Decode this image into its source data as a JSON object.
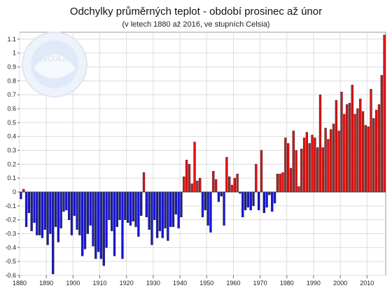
{
  "chart_data": {
    "type": "bar",
    "title": "Odchylky průměrných teplot - období prosinec až únor",
    "subtitle": "(v letech 1880 až 2016, ve stupních Celsia)",
    "xlabel": "",
    "ylabel": "",
    "xlim": [
      1880,
      2017
    ],
    "ylim": [
      -0.6,
      1.15
    ],
    "x_ticks": [
      "1880",
      "1890",
      "1900",
      "1910",
      "1920",
      "1930",
      "1940",
      "1950",
      "1960",
      "1970",
      "1980",
      "1990",
      "2000",
      "2010"
    ],
    "y_ticks": [
      "1.1",
      "1",
      "0.9",
      "0.8",
      "0.7",
      "0.6",
      "0.5",
      "0.4",
      "0.3",
      "0.2",
      "0.1",
      "0",
      "-0.1",
      "-0.2",
      "-0.3",
      "-0.4",
      "-0.5",
      "-0.6"
    ],
    "grid": true,
    "legend": "none",
    "positive_color": "#e81010",
    "negative_color": "#1414e0",
    "watermark": "NOAA",
    "start_year": 1880,
    "values": [
      -0.05,
      0.02,
      -0.25,
      -0.15,
      -0.28,
      -0.22,
      -0.31,
      -0.31,
      -0.33,
      -0.27,
      -0.38,
      -0.3,
      -0.59,
      -0.25,
      -0.36,
      -0.26,
      -0.14,
      -0.13,
      -0.2,
      -0.31,
      -0.17,
      -0.27,
      -0.31,
      -0.46,
      -0.41,
      -0.3,
      -0.24,
      -0.39,
      -0.48,
      -0.43,
      -0.48,
      -0.53,
      -0.4,
      -0.2,
      -0.28,
      -0.46,
      -0.25,
      -0.2,
      -0.48,
      -0.2,
      -0.22,
      -0.24,
      -0.21,
      -0.25,
      -0.32,
      -0.17,
      0.14,
      -0.18,
      -0.27,
      -0.38,
      -0.2,
      -0.33,
      -0.28,
      -0.33,
      -0.26,
      -0.35,
      -0.25,
      -0.25,
      -0.16,
      -0.26,
      -0.18,
      0.11,
      0.23,
      0.2,
      0.06,
      0.36,
      0.08,
      0.1,
      -0.18,
      -0.13,
      -0.24,
      -0.29,
      0.15,
      0.09,
      -0.07,
      -0.03,
      -0.24,
      0.25,
      0.11,
      0.05,
      0.1,
      0.13,
      -0.01,
      -0.18,
      -0.13,
      -0.11,
      -0.13,
      -0.1,
      0.2,
      -0.13,
      0.3,
      -0.15,
      -0.11,
      -0.02,
      -0.14,
      -0.08,
      0.13,
      0.13,
      0.14,
      0.39,
      0.35,
      0.17,
      0.44,
      0.3,
      0.04,
      0.31,
      0.39,
      0.43,
      0.35,
      0.41,
      0.39,
      0.32,
      0.7,
      0.32,
      0.46,
      0.38,
      0.45,
      0.49,
      0.66,
      0.44,
      0.72,
      0.56,
      0.63,
      0.64,
      0.77,
      0.56,
      0.6,
      0.67,
      0.58,
      0.48,
      0.47,
      0.74,
      0.53,
      0.59,
      0.63,
      0.84,
      1.13
    ]
  }
}
